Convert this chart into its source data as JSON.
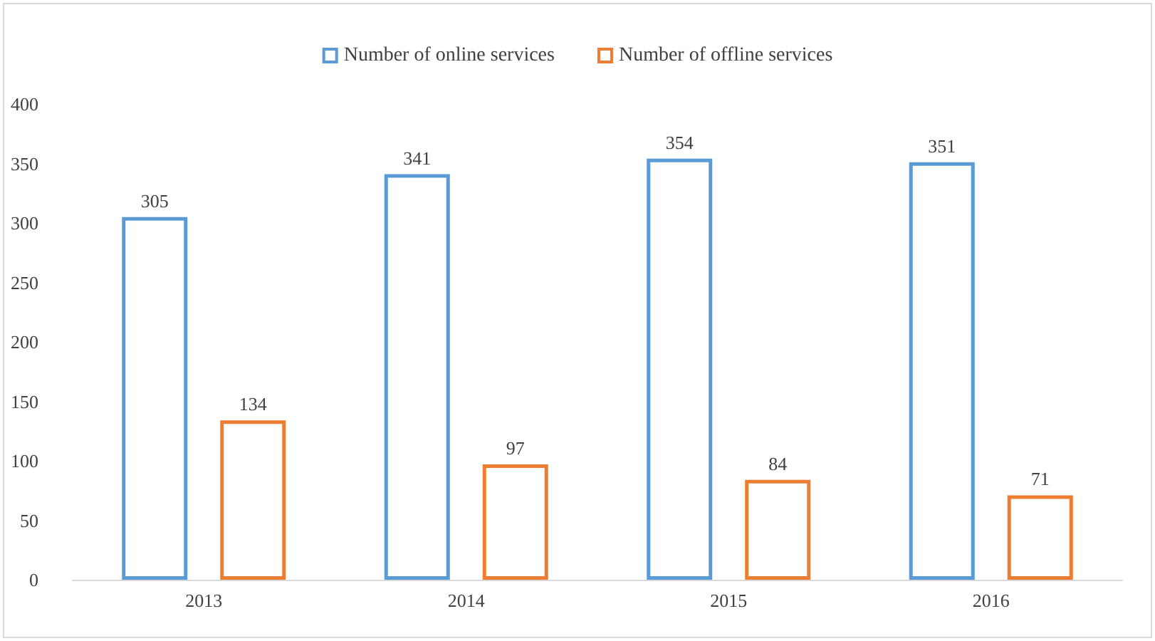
{
  "chart_data": {
    "type": "bar",
    "categories": [
      "2013",
      "2014",
      "2015",
      "2016"
    ],
    "series": [
      {
        "name": "Number of online services",
        "color": "#5b9bd5",
        "values": [
          305,
          341,
          354,
          351
        ]
      },
      {
        "name": "Number of offline services",
        "color": "#ed7d31",
        "values": [
          134,
          97,
          84,
          71
        ]
      }
    ],
    "ylim": [
      0,
      400
    ],
    "yticks": [
      0,
      50,
      100,
      150,
      200,
      250,
      300,
      350,
      400
    ],
    "grid": false,
    "legend": "top",
    "data_labels": true
  }
}
